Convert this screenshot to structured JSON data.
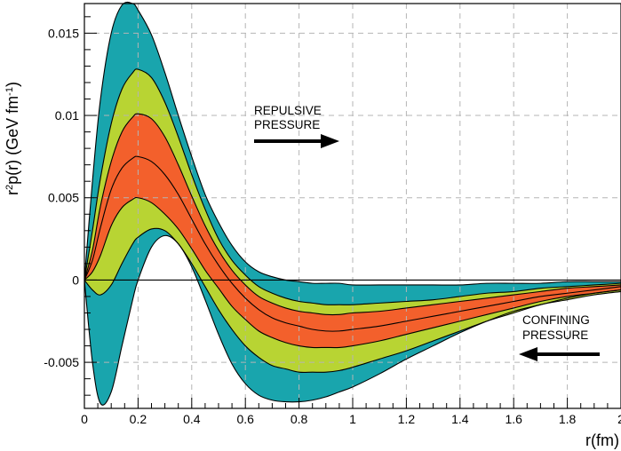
{
  "chart_data": {
    "type": "area",
    "xlabel": "r(fm)",
    "ylabel_parts": {
      "base": "r",
      "sup1": "2",
      "mid": "p(r) (GeV fm",
      "sup2": "-1",
      "end": ")"
    },
    "xlim": [
      0,
      2.0
    ],
    "ylim": [
      -0.0078,
      0.0168
    ],
    "x_ticks": [
      0,
      0.2,
      0.4,
      0.6,
      0.8,
      1,
      1.2,
      1.4,
      1.6,
      1.8,
      2
    ],
    "x_tick_labels": [
      "0",
      "0.2",
      "0.4",
      "0.6",
      "0.8",
      "1",
      "1.2",
      "1.4",
      "1.6",
      "1.8",
      "2"
    ],
    "y_ticks": [
      -0.005,
      0,
      0.005,
      0.01,
      0.015
    ],
    "y_tick_labels": [
      "-0.005",
      "0",
      "0.005",
      "0.01",
      "0.015"
    ],
    "grid": true,
    "x": [
      0,
      0.03,
      0.06,
      0.1,
      0.14,
      0.18,
      0.2,
      0.25,
      0.3,
      0.35,
      0.4,
      0.45,
      0.5,
      0.55,
      0.6,
      0.65,
      0.7,
      0.75,
      0.8,
      0.85,
      0.9,
      0.95,
      1.0,
      1.1,
      1.2,
      1.3,
      1.4,
      1.5,
      1.6,
      1.7,
      1.8,
      1.9,
      2.0
    ],
    "curves": {
      "outer_upper": [
        0,
        0.006,
        0.011,
        0.015,
        0.0167,
        0.0168,
        0.0164,
        0.0149,
        0.0126,
        0.01,
        0.0075,
        0.0052,
        0.0035,
        0.0021,
        0.0011,
        0.0005,
        0.0002,
        0.0,
        -0.0001,
        -0.0002,
        -0.0002,
        -0.0002,
        -0.0003,
        -0.0003,
        -0.0003,
        -0.0003,
        -0.0003,
        -0.0002,
        -0.0002,
        -0.0002,
        -0.0001,
        -0.0001,
        -0.0001
      ],
      "middle_upper": [
        0,
        0.003,
        0.0062,
        0.0095,
        0.0116,
        0.0126,
        0.0128,
        0.0123,
        0.0108,
        0.0087,
        0.0064,
        0.0043,
        0.0025,
        0.0012,
        0.0003,
        -0.0004,
        -0.0008,
        -0.0011,
        -0.0013,
        -0.0014,
        -0.0015,
        -0.0015,
        -0.0015,
        -0.0014,
        -0.0013,
        -0.0012,
        -0.001,
        -0.0008,
        -0.0007,
        -0.0005,
        -0.0004,
        -0.0003,
        -0.0002
      ],
      "inner_upper": [
        0,
        0.0018,
        0.0045,
        0.0072,
        0.009,
        0.0099,
        0.0101,
        0.0098,
        0.0087,
        0.007,
        0.0051,
        0.0033,
        0.0018,
        0.0006,
        -0.0003,
        -0.001,
        -0.0014,
        -0.0017,
        -0.0019,
        -0.002,
        -0.0021,
        -0.0021,
        -0.002,
        -0.0019,
        -0.0017,
        -0.0015,
        -0.0013,
        -0.0011,
        -0.0009,
        -0.0007,
        -0.0005,
        -0.0004,
        -0.0003
      ],
      "center": [
        0,
        0.0012,
        0.0032,
        0.0055,
        0.0068,
        0.0074,
        0.0075,
        0.0072,
        0.0064,
        0.0052,
        0.0037,
        0.0022,
        0.0009,
        -0.0002,
        -0.0011,
        -0.0018,
        -0.0023,
        -0.0026,
        -0.0028,
        -0.003,
        -0.0031,
        -0.0031,
        -0.003,
        -0.0028,
        -0.0025,
        -0.0022,
        -0.0019,
        -0.0016,
        -0.0013,
        -0.001,
        -0.0008,
        -0.0006,
        -0.0004
      ],
      "inner_lower": [
        0,
        0.0005,
        0.0015,
        0.0033,
        0.0044,
        0.0049,
        0.005,
        0.0047,
        0.004,
        0.0031,
        0.0019,
        0.0006,
        -0.0005,
        -0.0016,
        -0.0024,
        -0.0031,
        -0.0035,
        -0.0038,
        -0.004,
        -0.0041,
        -0.0041,
        -0.0041,
        -0.004,
        -0.0037,
        -0.0033,
        -0.0029,
        -0.0025,
        -0.0021,
        -0.0017,
        -0.0013,
        -0.001,
        -0.0008,
        -0.0006
      ],
      "middle_lower": [
        0,
        -0.0006,
        -0.0009,
        -0.0003,
        0.001,
        0.0022,
        0.0026,
        0.0031,
        0.003,
        0.0022,
        0.001,
        -0.0004,
        -0.0018,
        -0.003,
        -0.004,
        -0.0047,
        -0.0052,
        -0.0054,
        -0.0056,
        -0.0056,
        -0.0056,
        -0.0055,
        -0.0053,
        -0.0048,
        -0.0043,
        -0.0037,
        -0.0031,
        -0.0025,
        -0.002,
        -0.0015,
        -0.0012,
        -0.0009,
        -0.0007
      ],
      "outer_lower": [
        0,
        -0.005,
        -0.0075,
        -0.0068,
        -0.004,
        -0.0012,
        0.0,
        0.002,
        0.0027,
        0.0022,
        0.0008,
        -0.0012,
        -0.0033,
        -0.0051,
        -0.0063,
        -0.007,
        -0.0073,
        -0.0074,
        -0.0074,
        -0.0073,
        -0.0071,
        -0.0068,
        -0.0065,
        -0.0057,
        -0.0048,
        -0.004,
        -0.0032,
        -0.0025,
        -0.0019,
        -0.0015,
        -0.0011,
        -0.0008,
        -0.0006
      ]
    },
    "bands": [
      {
        "upper": "outer_upper",
        "lower": "outer_lower",
        "color": "#19a5ad"
      },
      {
        "upper": "middle_upper",
        "lower": "middle_lower",
        "color": "#b8d433"
      },
      {
        "upper": "inner_upper",
        "lower": "inner_lower",
        "color": "#f3602c"
      }
    ],
    "annotations": [
      {
        "lines": [
          "REPULSIVE",
          "PRESSURE"
        ],
        "arrow": "right"
      },
      {
        "lines": [
          "CONFINING",
          "PRESSURE"
        ],
        "arrow": "left"
      }
    ]
  }
}
